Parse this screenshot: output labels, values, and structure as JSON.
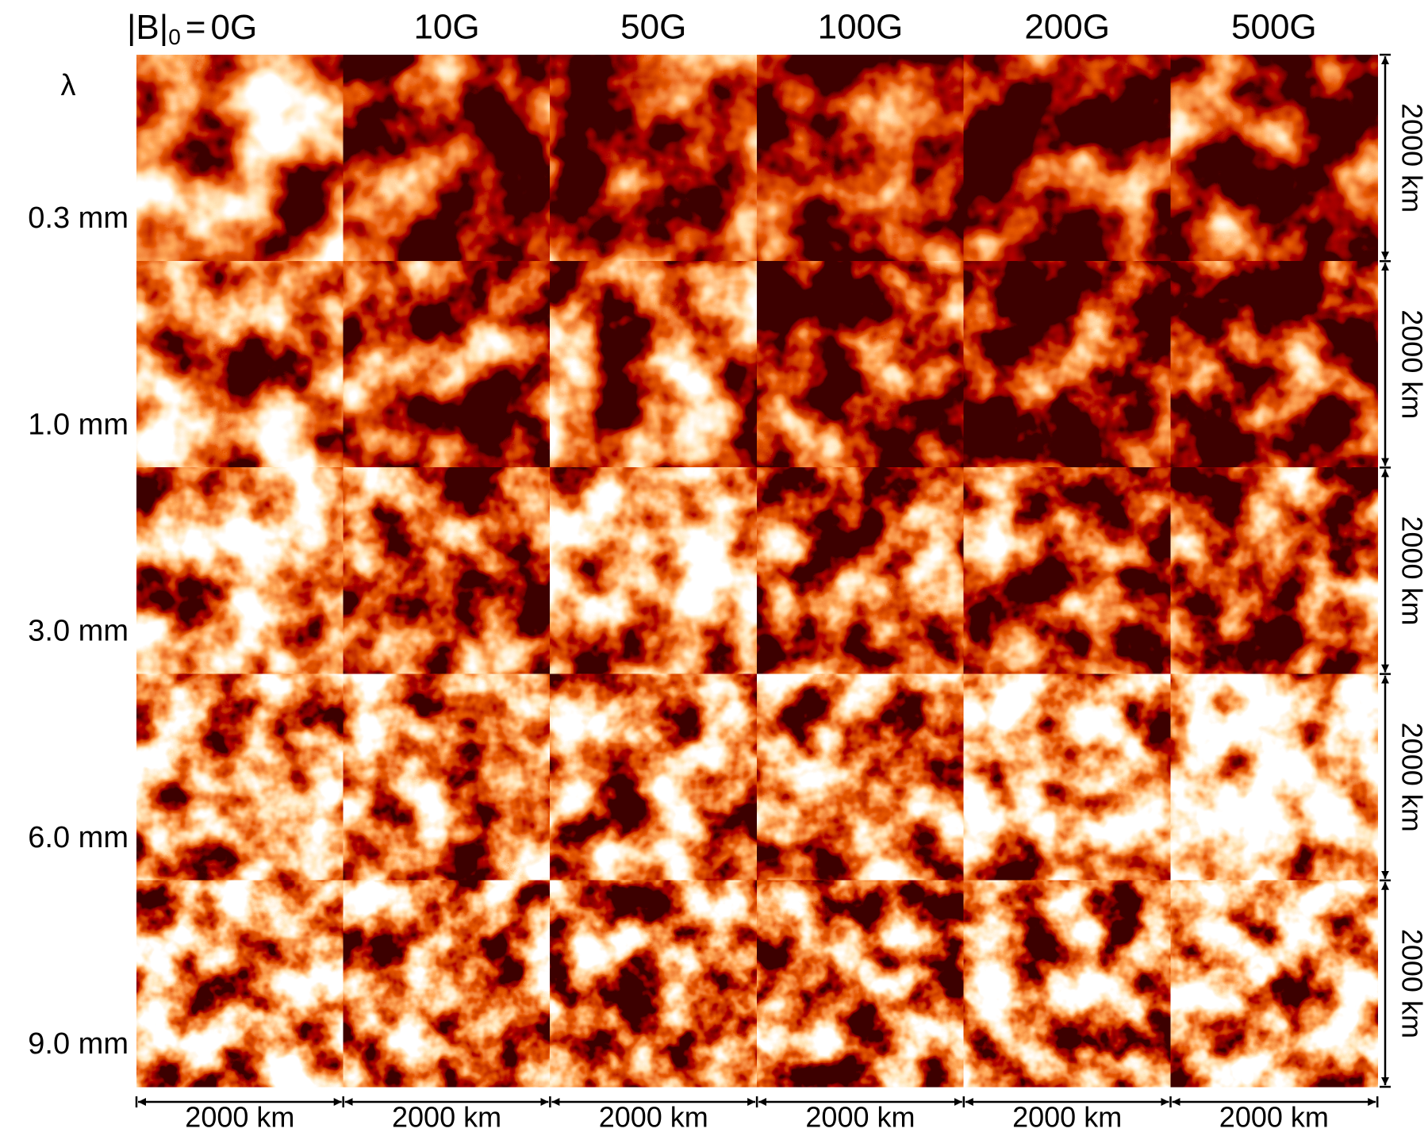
{
  "figure": {
    "field_label": "|B|",
    "field_subscript": "0",
    "equals": "=",
    "columns": [
      "0G",
      "10G",
      "50G",
      "100G",
      "200G",
      "500G"
    ],
    "row_header": "λ",
    "rows": [
      "0.3 mm",
      "1.0 mm",
      "3.0 mm",
      "6.0 mm",
      "9.0 mm"
    ],
    "x_scale_labels": [
      "2000 km",
      "2000 km",
      "2000 km",
      "2000 km",
      "2000 km",
      "2000 km"
    ],
    "y_scale_labels": [
      "2000 km",
      "2000 km",
      "2000 km",
      "2000 km",
      "2000 km"
    ]
  }
}
